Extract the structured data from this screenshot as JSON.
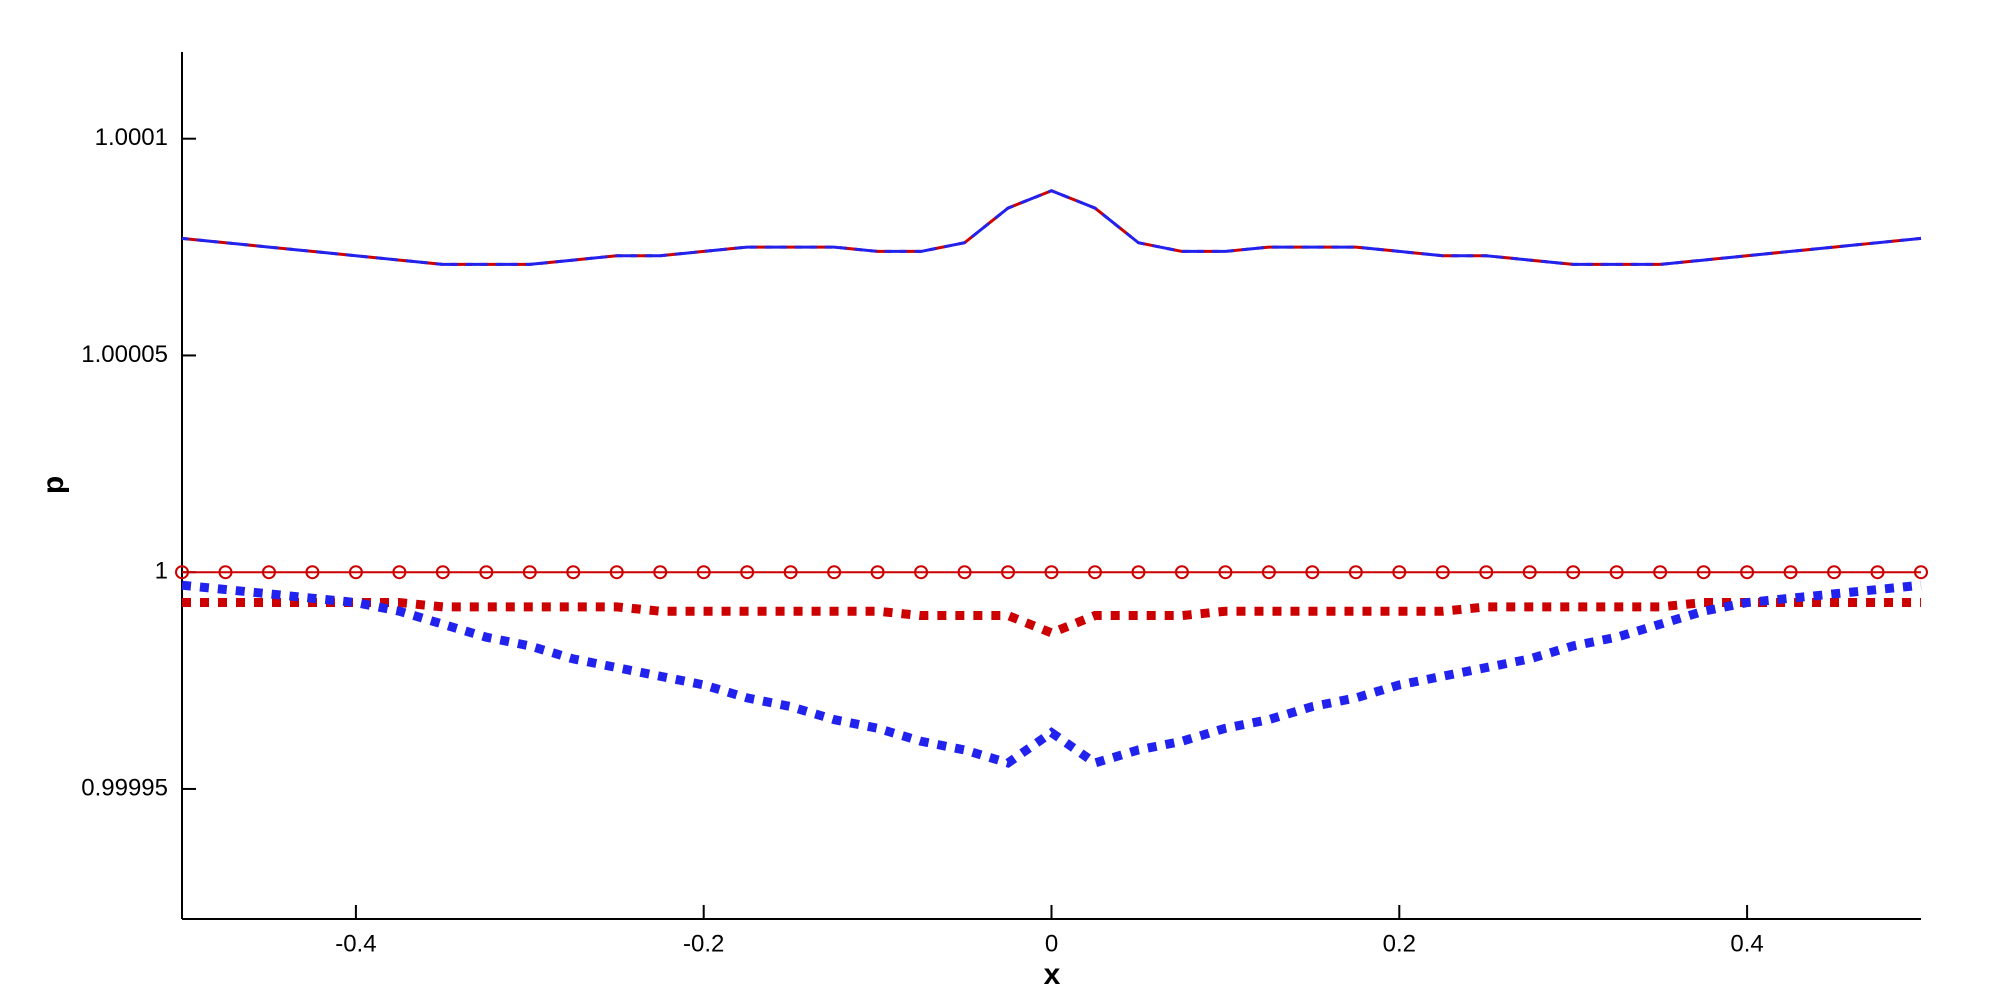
{
  "chart_data": {
    "type": "line",
    "x_label": "x",
    "y_label": "p",
    "xlim": [
      -0.5,
      0.5
    ],
    "xticks": [
      -0.4,
      -0.2,
      0,
      0.2,
      0.4
    ],
    "ylim": [
      0.99992,
      1.00012
    ],
    "yticks": [
      0.99995,
      1,
      1.00005,
      1.0001
    ],
    "x": [
      -0.5,
      -0.475,
      -0.45,
      -0.425,
      -0.4,
      -0.375,
      -0.35,
      -0.325,
      -0.3,
      -0.275,
      -0.25,
      -0.225,
      -0.2,
      -0.175,
      -0.15,
      -0.125,
      -0.1,
      -0.075,
      -0.05,
      -0.025,
      0,
      0.025,
      0.05,
      0.075,
      0.1,
      0.125,
      0.15,
      0.175,
      0.2,
      0.225,
      0.25,
      0.275,
      0.3,
      0.325,
      0.35,
      0.375,
      0.4,
      0.425,
      0.45,
      0.475,
      0.5
    ],
    "series": [
      {
        "color": "#cc0000",
        "line_style": "dashed",
        "values": [
          1.000077,
          1.000076,
          1.000075,
          1.000074,
          1.000073,
          1.000072,
          1.000071,
          1.000071,
          1.000071,
          1.000072,
          1.000073,
          1.000073,
          1.000074,
          1.000075,
          1.000075,
          1.000075,
          1.000074,
          1.000074,
          1.000076,
          1.000084,
          1.000088,
          1.000084,
          1.000076,
          1.000074,
          1.000074,
          1.000075,
          1.000075,
          1.000075,
          1.000074,
          1.000073,
          1.000073,
          1.000072,
          1.000071,
          1.000071,
          1.000071,
          1.000072,
          1.000073,
          1.000074,
          1.000075,
          1.000076,
          1.000077
        ]
      },
      {
        "color": "#2222ee",
        "line_style": "dashed",
        "values": [
          1.000077,
          1.000076,
          1.000075,
          1.000074,
          1.000073,
          1.000072,
          1.000071,
          1.000071,
          1.000071,
          1.000072,
          1.000073,
          1.000073,
          1.000074,
          1.000075,
          1.000075,
          1.000075,
          1.000074,
          1.000074,
          1.000076,
          1.000084,
          1.000088,
          1.000084,
          1.000076,
          1.000074,
          1.000074,
          1.000075,
          1.000075,
          1.000075,
          1.000074,
          1.000073,
          1.000073,
          1.000072,
          1.000071,
          1.000071,
          1.000071,
          1.000072,
          1.000073,
          1.000074,
          1.000075,
          1.000076,
          1.000077
        ]
      },
      {
        "color": "#cc0000",
        "line_style": "circles",
        "values": [
          1,
          1,
          1,
          1,
          1,
          1,
          1,
          1,
          1,
          1,
          1,
          1,
          1,
          1,
          1,
          1,
          1,
          1,
          1,
          1,
          1,
          1,
          1,
          1,
          1,
          1,
          1,
          1,
          1,
          1,
          1,
          1,
          1,
          1,
          1,
          1,
          1,
          1,
          1,
          1,
          1
        ]
      },
      {
        "color": "#cc0000",
        "line_style": "dotted",
        "values": [
          0.999993,
          0.999993,
          0.999993,
          0.999993,
          0.999993,
          0.999993,
          0.999992,
          0.999992,
          0.999992,
          0.999992,
          0.999992,
          0.999991,
          0.999991,
          0.999991,
          0.999991,
          0.999991,
          0.999991,
          0.99999,
          0.99999,
          0.99999,
          0.999986,
          0.99999,
          0.99999,
          0.99999,
          0.999991,
          0.999991,
          0.999991,
          0.999991,
          0.999991,
          0.999991,
          0.999992,
          0.999992,
          0.999992,
          0.999992,
          0.999992,
          0.999993,
          0.999993,
          0.999993,
          0.999993,
          0.999993,
          0.999993
        ]
      },
      {
        "color": "#2222ee",
        "line_style": "dotted",
        "values": [
          0.999997,
          0.999996,
          0.999995,
          0.999994,
          0.999993,
          0.999991,
          0.999988,
          0.999985,
          0.999983,
          0.99998,
          0.999978,
          0.999976,
          0.999974,
          0.999971,
          0.999969,
          0.999966,
          0.999964,
          0.999961,
          0.999959,
          0.999956,
          0.999963,
          0.999956,
          0.999959,
          0.999961,
          0.999964,
          0.999966,
          0.999969,
          0.999971,
          0.999974,
          0.999976,
          0.999978,
          0.99998,
          0.999983,
          0.999985,
          0.999988,
          0.999991,
          0.999993,
          0.999994,
          0.999995,
          0.999996,
          0.999997
        ]
      }
    ]
  }
}
